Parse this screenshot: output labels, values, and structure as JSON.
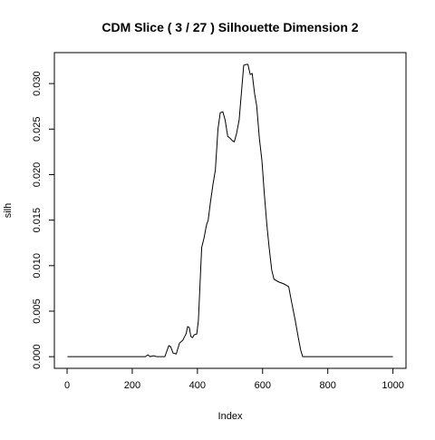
{
  "chart_data": {
    "type": "line",
    "title": "CDM Slice ( 3 / 27 )  Silhouette Dimension 2",
    "x_label": "Index",
    "y_label": "silh",
    "series": [
      {
        "name": "silh",
        "color": "#000000",
        "x": [
          1,
          240,
          248,
          255,
          265,
          275,
          300,
          305,
          312,
          318,
          325,
          335,
          345,
          355,
          365,
          370,
          375,
          380,
          385,
          390,
          398,
          403,
          408,
          413,
          420,
          428,
          433,
          440,
          448,
          455,
          463,
          470,
          478,
          485,
          493,
          500,
          508,
          513,
          520,
          528,
          535,
          542,
          550,
          555,
          562,
          568,
          575,
          582,
          590,
          598,
          605,
          613,
          620,
          628,
          635,
          650,
          665,
          680,
          690,
          700,
          710,
          717,
          723,
          800,
          1000
        ],
        "values": [
          0,
          0,
          0.0002,
          0,
          0.0001,
          0,
          0,
          0.0005,
          0.0012,
          0.0011,
          0.0004,
          0.0003,
          0.0015,
          0.0018,
          0.0025,
          0.0033,
          0.0032,
          0.0022,
          0.0021,
          0.0024,
          0.0025,
          0.004,
          0.008,
          0.012,
          0.013,
          0.0145,
          0.015,
          0.017,
          0.019,
          0.0205,
          0.025,
          0.0268,
          0.0269,
          0.026,
          0.0242,
          0.024,
          0.0237,
          0.0236,
          0.0245,
          0.026,
          0.029,
          0.032,
          0.0321,
          0.0321,
          0.031,
          0.0311,
          0.029,
          0.0275,
          0.024,
          0.0215,
          0.018,
          0.0145,
          0.012,
          0.0095,
          0.0085,
          0.0082,
          0.008,
          0.0077,
          0.0058,
          0.004,
          0.002,
          0.0007,
          0,
          0,
          0
        ]
      }
    ],
    "xlim": [
      -39,
      1040
    ],
    "ylim": [
      -0.00128,
      0.0334
    ],
    "xticks": [
      0,
      200,
      400,
      600,
      800,
      1000
    ],
    "yticks": [
      {
        "value": 0,
        "label": "0.000"
      },
      {
        "value": 0.005,
        "label": "0.005"
      },
      {
        "value": 0.01,
        "label": "0.010"
      },
      {
        "value": 0.015,
        "label": "0.015"
      },
      {
        "value": 0.02,
        "label": "0.020"
      },
      {
        "value": 0.025,
        "label": "0.025"
      },
      {
        "value": 0.03,
        "label": "0.030"
      }
    ]
  }
}
